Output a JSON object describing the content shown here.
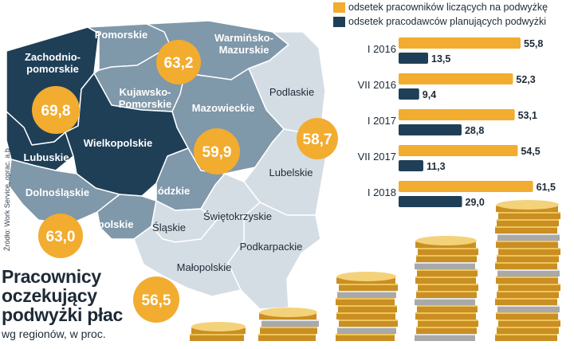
{
  "colors": {
    "accent_orange": "#f2ac2f",
    "dark_navy": "#1f3f57",
    "mid_blue": "#7f98aa",
    "light_blue": "#d5dde4"
  },
  "map": {
    "regions": [
      {
        "name": "Zachodnio-\npomorskie",
        "shade": "dark"
      },
      {
        "name": "Pomorskie",
        "shade": "mid"
      },
      {
        "name": "Warmińsko-\nMazurskie",
        "shade": "mid"
      },
      {
        "name": "Kujawsko-\nPomorskie",
        "shade": "mid"
      },
      {
        "name": "Podlaskie",
        "shade": "light"
      },
      {
        "name": "Mazowieckie",
        "shade": "mid"
      },
      {
        "name": "Lubuskie",
        "shade": "dark"
      },
      {
        "name": "Wielkopolskie",
        "shade": "dark"
      },
      {
        "name": "Dolnośląskie",
        "shade": "mid"
      },
      {
        "name": "Łódzkie",
        "shade": "mid"
      },
      {
        "name": "Lubelskie",
        "shade": "light"
      },
      {
        "name": "Opolskie",
        "shade": "mid"
      },
      {
        "name": "Świętokrzyskie",
        "shade": "light"
      },
      {
        "name": "Śląskie",
        "shade": "light"
      },
      {
        "name": "Podkarpackie",
        "shade": "light"
      },
      {
        "name": "Małopolskie",
        "shade": "light"
      }
    ],
    "bubbles": [
      "63,2",
      "69,8",
      "59,9",
      "58,7",
      "63,0",
      "56,5"
    ]
  },
  "chart_data": {
    "type": "bar",
    "orientation": "horizontal",
    "categories": [
      "I 2016",
      "VII 2016",
      "I 2017",
      "VII 2017",
      "I 2018"
    ],
    "series": [
      {
        "name": "odsetek pracowników liczących na podwyżkę",
        "color": "#f2ac2f",
        "values": [
          55.8,
          52.3,
          53.1,
          54.5,
          61.5
        ],
        "labels": [
          "55,8",
          "52,3",
          "53,1",
          "54,5",
          "61,5"
        ]
      },
      {
        "name": "odsetek pracodawców planujących podwyżki",
        "color": "#1f3f57",
        "values": [
          13.5,
          9.4,
          28.8,
          11.3,
          29.0
        ],
        "labels": [
          "13,5",
          "9,4",
          "28,8",
          "11,3",
          "29,0"
        ]
      }
    ],
    "xlim": [
      0,
      62
    ],
    "legend": "top"
  },
  "title": {
    "lines": [
      "Pracownicy",
      "oczekujący",
      "podwyżki płac"
    ],
    "subtitle": "wg regionów, w proc."
  },
  "source": "Źródło: Work Service, oprac. a.b."
}
